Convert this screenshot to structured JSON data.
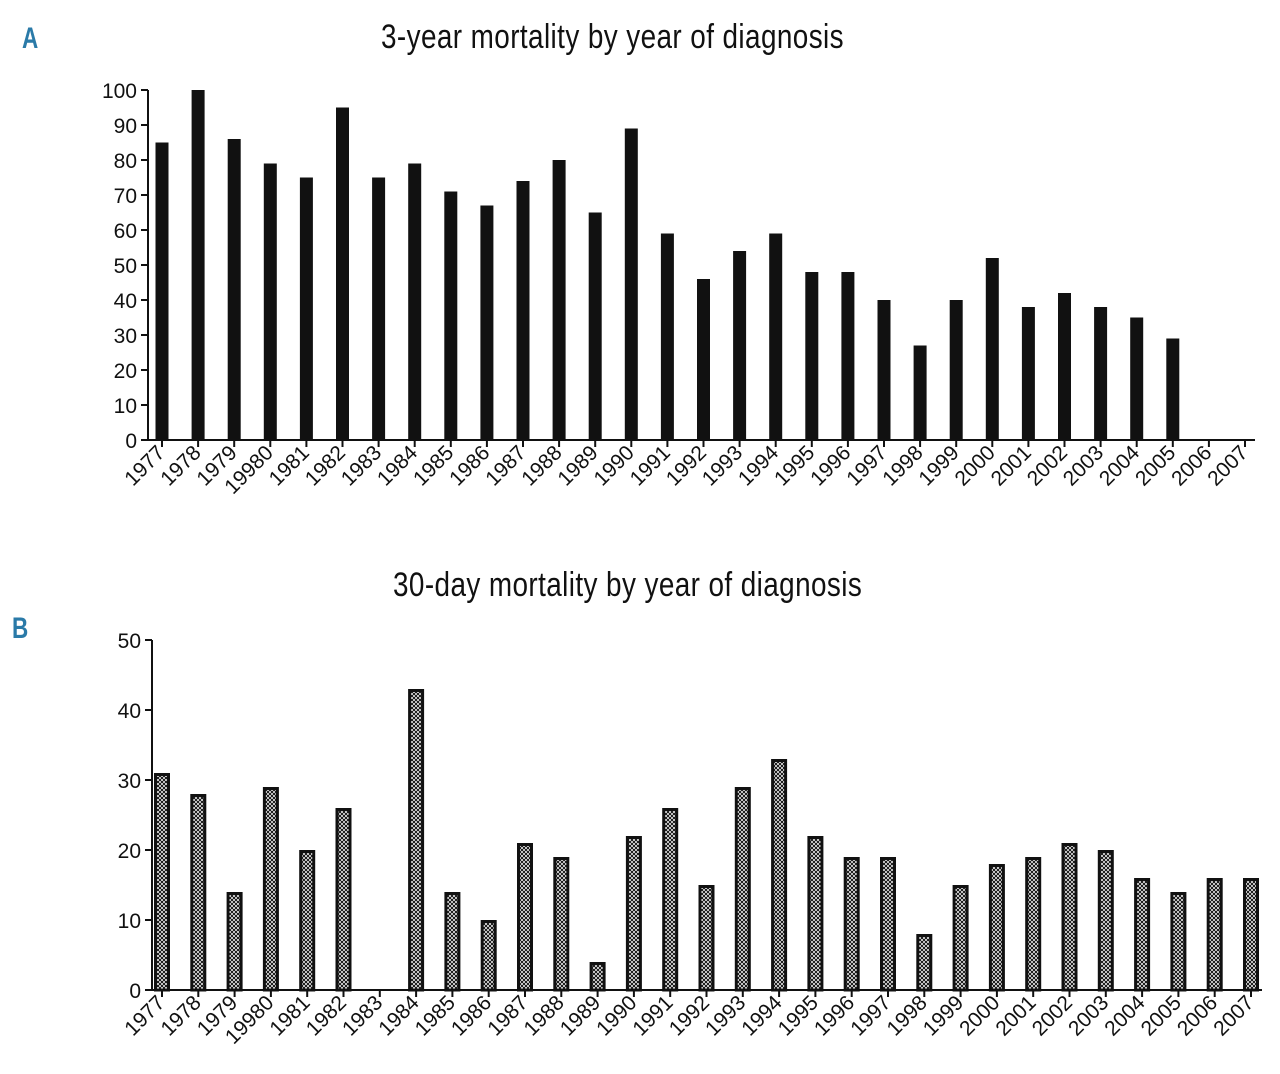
{
  "figure": {
    "panel_a_label": "A",
    "panel_b_label": "B"
  },
  "chart_data": [
    {
      "type": "bar",
      "title": "3-year mortality by year of diagnosis",
      "xlabel": "",
      "ylabel": "",
      "categories": [
        "1977",
        "1978",
        "1979",
        "19980",
        "1981",
        "1982",
        "1983",
        "1984",
        "1985",
        "1986",
        "1987",
        "1988",
        "1989",
        "1990",
        "1991",
        "1992",
        "1993",
        "1994",
        "1995",
        "1996",
        "1997",
        "1998",
        "1999",
        "2000",
        "2001",
        "2002",
        "2003",
        "2004",
        "2005",
        "2006",
        "2007"
      ],
      "values": [
        85,
        100,
        86,
        79,
        75,
        95,
        75,
        79,
        71,
        67,
        74,
        80,
        65,
        89,
        59,
        46,
        54,
        59,
        48,
        48,
        40,
        27,
        40,
        52,
        38,
        42,
        38,
        35,
        29,
        null,
        null
      ],
      "yticks": [
        0,
        10,
        20,
        30,
        40,
        50,
        60,
        70,
        80,
        90,
        100
      ],
      "ylim": [
        0,
        100
      ],
      "bar_style": "solid",
      "bar_color": "#111111"
    },
    {
      "type": "bar",
      "title": "30-day mortality by year of diagnosis",
      "xlabel": "",
      "ylabel": "",
      "categories": [
        "1977",
        "1978",
        "1979",
        "19980",
        "1981",
        "1982",
        "1983",
        "1984",
        "1985",
        "1986",
        "1987",
        "1988",
        "1989",
        "1990",
        "1991",
        "1992",
        "1993",
        "1994",
        "1995",
        "1996",
        "1997",
        "1998",
        "1999",
        "2000",
        "2001",
        "2002",
        "2003",
        "2004",
        "2005",
        "2006",
        "2007"
      ],
      "values": [
        31,
        28,
        14,
        29,
        20,
        26,
        null,
        43,
        14,
        10,
        21,
        19,
        4,
        22,
        26,
        15,
        29,
        33,
        22,
        19,
        19,
        8,
        15,
        18,
        19,
        21,
        20,
        16,
        14,
        16,
        16
      ],
      "yticks": [
        0,
        10,
        20,
        30,
        40,
        50
      ],
      "ylim": [
        0,
        50
      ],
      "bar_style": "hatched",
      "bar_color": "#111111"
    }
  ]
}
